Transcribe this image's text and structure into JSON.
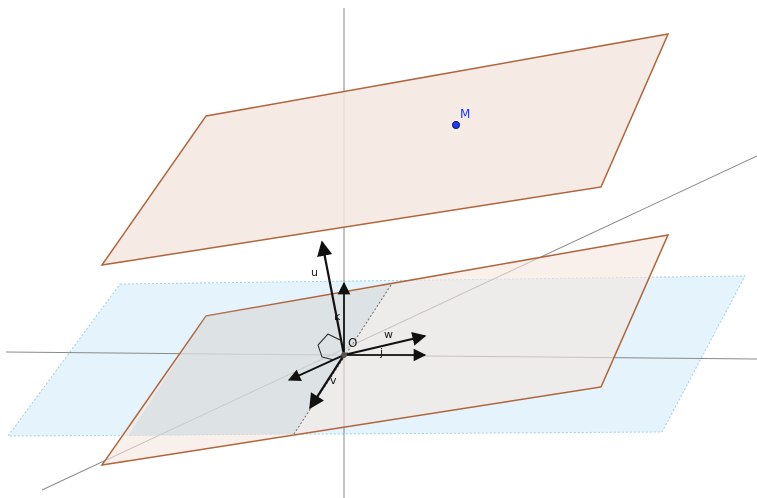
{
  "figure": {
    "labels": {
      "point_m": "M",
      "origin": "O",
      "vec_u": "u",
      "vec_v": "v",
      "vec_w": "w",
      "vec_k": "k",
      "vec_j": "j"
    },
    "colors": {
      "plane_fill": "#f5e6e0",
      "plane_stroke": "#b0643a",
      "blue_plane_fill": "#dff1fb",
      "blue_plane_stroke": "#9fd2ea",
      "axis": "#8a8a8a",
      "vector": "#111111",
      "point_m": "#1a3cff"
    }
  }
}
